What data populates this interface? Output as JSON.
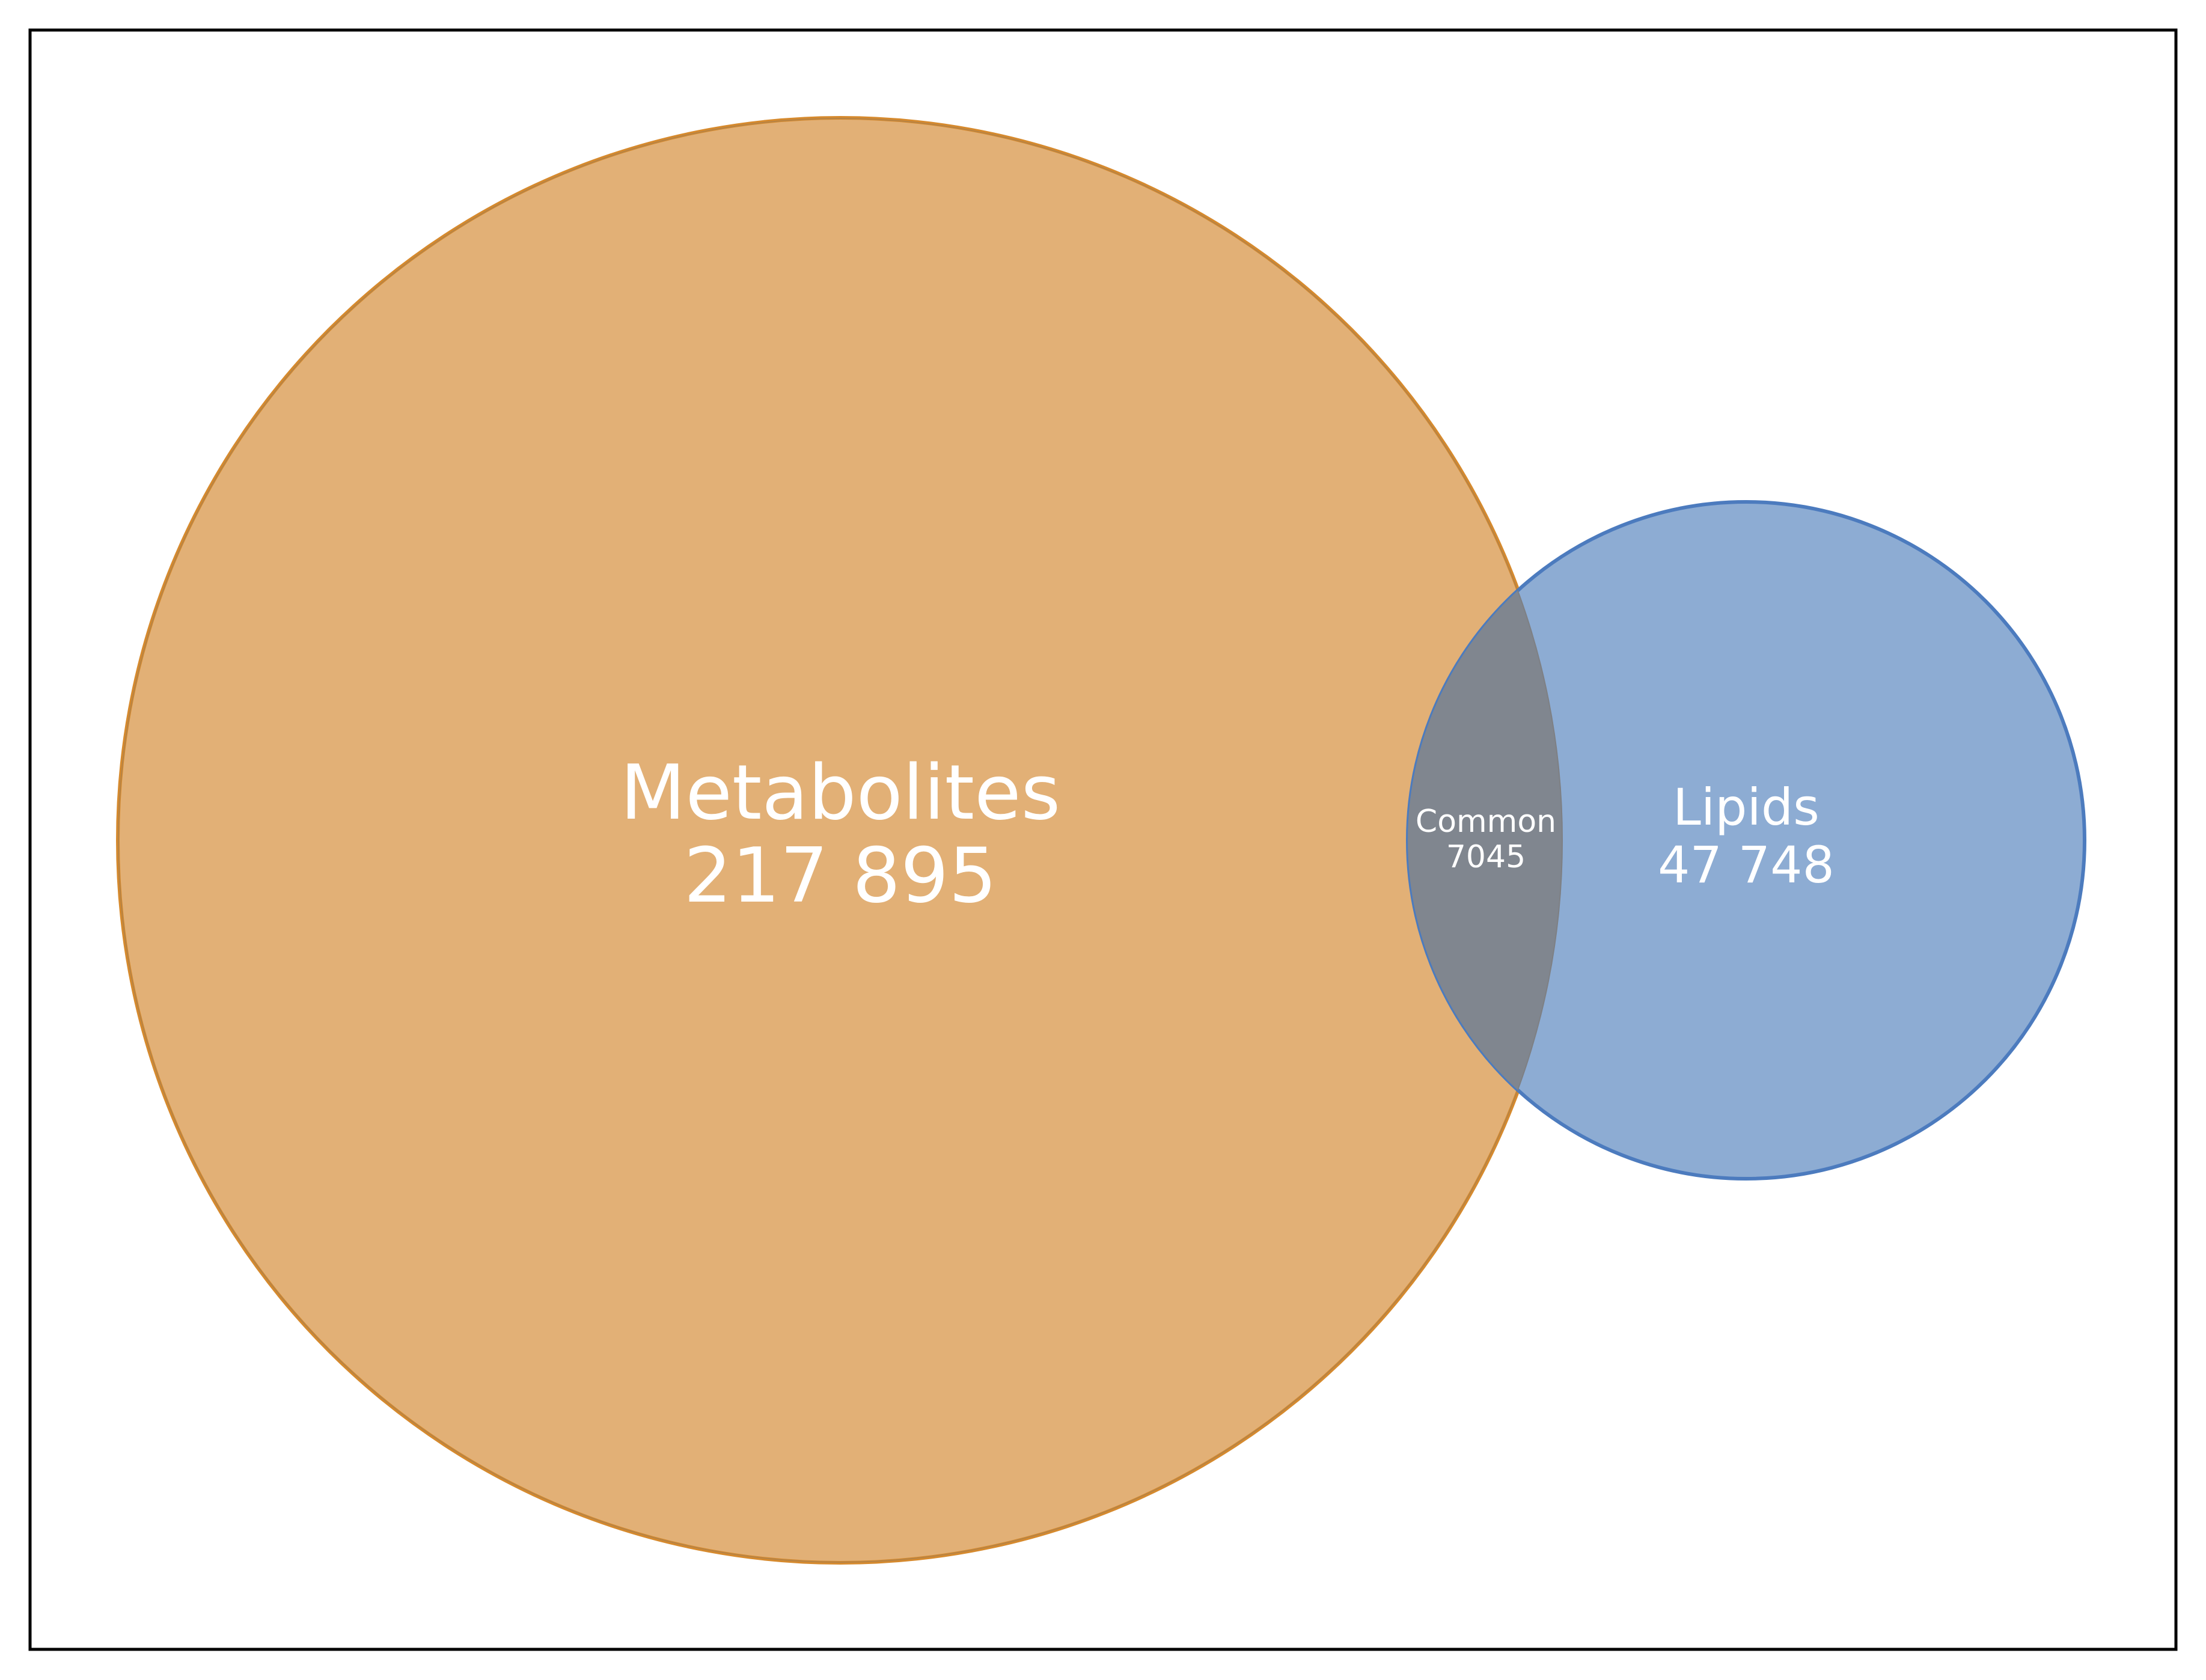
{
  "venn": {
    "sets": [
      {
        "label": "Metabolites",
        "count": "217 895",
        "color": "#d68a2e"
      },
      {
        "label": "Lipids",
        "count": "47 748",
        "color": "#4c7bbe"
      }
    ],
    "intersection": {
      "label": "Common",
      "count": "7045",
      "color": "#80868f"
    }
  }
}
